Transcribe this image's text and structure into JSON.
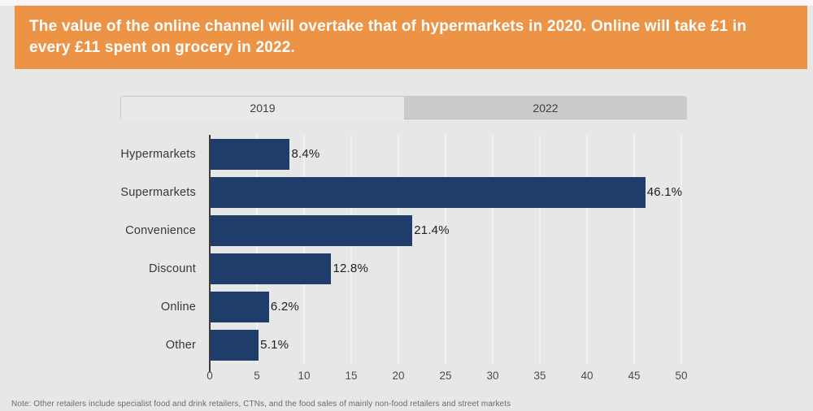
{
  "banner": {
    "text": "The value of the online channel will overtake that of hypermarkets in 2020. Online will take £1 in every £11 spent on grocery in 2022.",
    "bg_color": "#ed9345",
    "text_color": "#ffffff"
  },
  "tabs": [
    {
      "label": "2019",
      "active": true
    },
    {
      "label": "2022",
      "active": false
    }
  ],
  "chart_data": {
    "type": "bar",
    "orientation": "horizontal",
    "title": "",
    "categories": [
      "Hypermarkets",
      "Supermarkets",
      "Convenience",
      "Discount",
      "Online",
      "Other"
    ],
    "values": [
      8.4,
      46.1,
      21.4,
      12.8,
      6.2,
      5.1
    ],
    "value_labels": [
      "8.4%",
      "46.1%",
      "21.4%",
      "12.8%",
      "6.2%",
      "5.1%"
    ],
    "xlim": [
      0,
      50
    ],
    "x_ticks": [
      "0",
      "5",
      "10",
      "15",
      "20",
      "25",
      "30",
      "35",
      "40",
      "45",
      "50"
    ],
    "grid": "vertical gridlines at each tick",
    "legend_position": "none",
    "bar_color": "#1e3d6b",
    "background_color": "#e7e7e7"
  },
  "note": {
    "text": "Note: Other retailers include specialist food and drink retailers, CTNs, and the food sales of mainly non-food retailers and street markets"
  }
}
